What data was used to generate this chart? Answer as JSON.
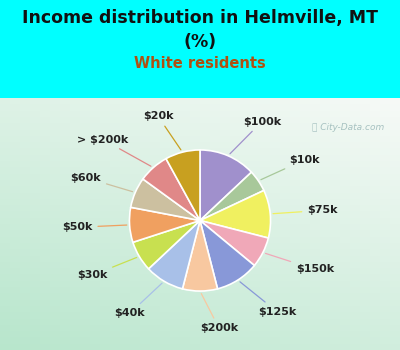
{
  "title_line1": "Income distribution in Helmville, MT",
  "title_line2": "(%)",
  "subtitle": "White residents",
  "title_color": "#111111",
  "subtitle_color": "#b05010",
  "bg_top": "#00ffff",
  "watermark": "ⓘ City-Data.com",
  "labels": [
    "$100k",
    "$10k",
    "$75k",
    "$150k",
    "$125k",
    "$200k",
    "$40k",
    "$30k",
    "$50k",
    "$60k",
    "> $200k",
    "$20k"
  ],
  "sizes": [
    13,
    5,
    11,
    7,
    10,
    8,
    9,
    7,
    8,
    7,
    7,
    8
  ],
  "colors": [
    "#a090cc",
    "#a8c89a",
    "#f0f060",
    "#f0a8b8",
    "#8898d8",
    "#f8c8a0",
    "#a8c0e8",
    "#c8e050",
    "#f0a060",
    "#ccc0a0",
    "#e08888",
    "#c8a020"
  ],
  "label_fontsize": 8,
  "title_fontsize": 12.5,
  "subtitle_fontsize": 10.5,
  "label_color": "#222222"
}
